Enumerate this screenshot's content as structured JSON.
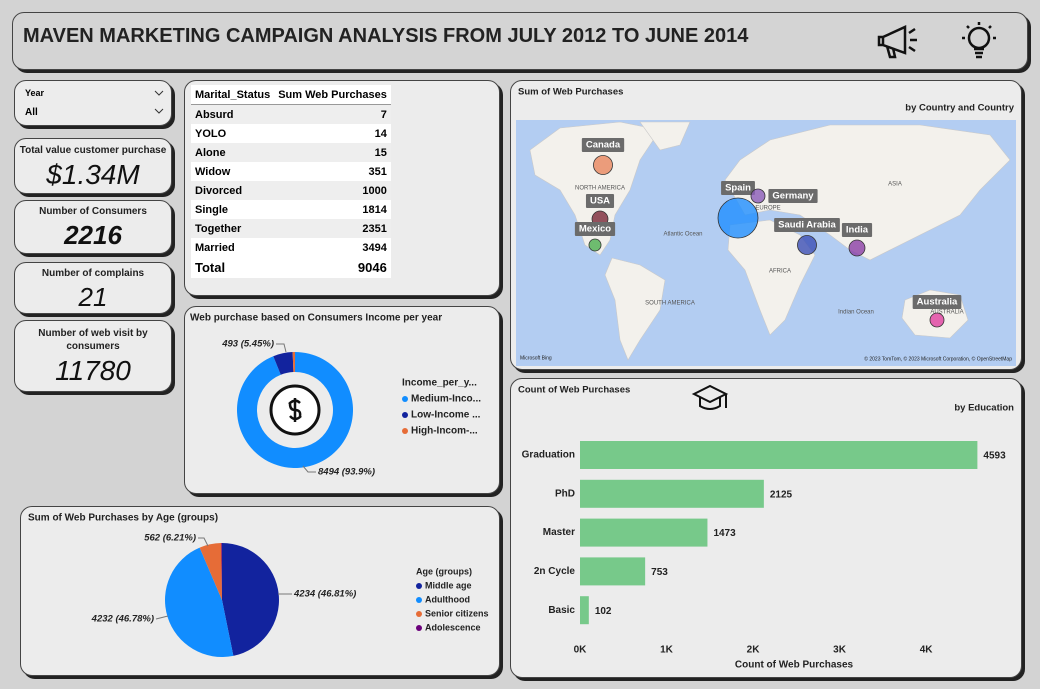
{
  "header": {
    "title": "MAVEN MARKETING CAMPAIGN ANALYSIS FROM JULY 2012 TO JUNE 2014"
  },
  "slicer": {
    "label": "Year",
    "value": "All"
  },
  "cards": [
    {
      "label": "Total value customer purchase",
      "value": "$1.34M"
    },
    {
      "label": "Number of Consumers",
      "value": 2216
    },
    {
      "label": "Number of complains",
      "value": 21
    },
    {
      "label": "Number of web visit by consumers",
      "value": 11780
    }
  ],
  "table": {
    "columns": [
      "Marital_Status",
      "Sum Web Purchases"
    ],
    "rows": [
      [
        "Absurd",
        7
      ],
      [
        "YOLO",
        14
      ],
      [
        "Alone",
        15
      ],
      [
        "Widow",
        351
      ],
      [
        "Divorced",
        1000
      ],
      [
        "Single",
        1814
      ],
      [
        "Together",
        2351
      ],
      [
        "Married",
        3494
      ]
    ],
    "total": {
      "label": "Total",
      "value": 9046
    }
  },
  "chart_data": [
    {
      "type": "map",
      "title": "Sum of Web Purchases",
      "subtitle": "by Country and Country",
      "categories": [
        "Canada",
        "Spain",
        "Germany",
        "USA",
        "Mexico",
        "Saudi Arabia",
        "India",
        "Australia"
      ],
      "values": [
        1000,
        4400,
        540,
        700,
        400,
        1000,
        700,
        540
      ],
      "colors": [
        "#e8875f",
        "#1f8fff",
        "#8a5bb8",
        "#7b2838",
        "#4caf50",
        "#3b4fb5",
        "#8b3fa6",
        "#e040a0"
      ],
      "region_labels": [
        "NORTH AMERICA",
        "SOUTH AMERICA",
        "AFRICA",
        "ASIA",
        "EUROPE",
        "AUSTRALIA",
        "Atlantic Ocean",
        "Indian Ocean"
      ],
      "attribution": "© 2023 TomTom, © 2023 Microsoft Corporation, © OpenStreetMap",
      "logo": "Microsoft Bing"
    },
    {
      "type": "donut",
      "title": "Web purchase based on Consumers Income per year",
      "legend_title": "Income_per_y...",
      "categories": [
        "Medium-Inco...",
        "Low-Income ...",
        "High-Incom-..."
      ],
      "values": [
        8494,
        493,
        59
      ],
      "value_labels": [
        "8494 (93.9%)",
        "493 (5.45%)",
        null
      ],
      "colors": [
        "#118dff",
        "#12239e",
        "#e66c37"
      ]
    },
    {
      "type": "pie",
      "title": "Sum of Web Purchases by Age (groups)",
      "legend_title": "Age (groups)",
      "categories": [
        "Middle age",
        "Adulthood",
        "Senior citizens",
        "Adolescence"
      ],
      "values": [
        4234,
        4232,
        562,
        18
      ],
      "value_labels": [
        "4234 (46.81%)",
        "4232 (46.78%)",
        "562 (6.21%)",
        null
      ],
      "colors": [
        "#12239e",
        "#118dff",
        "#e66c37",
        "#6b007b"
      ]
    },
    {
      "type": "bar",
      "title": "Count of Web Purchases",
      "subtitle": "by Education",
      "x_label": "Count of Web Purchases",
      "categories": [
        "Graduation",
        "PhD",
        "Master",
        "2n Cycle",
        "Basic"
      ],
      "values": [
        4593,
        2125,
        1473,
        753,
        102
      ],
      "color": "#77c98a",
      "xlim": [
        0,
        4600
      ],
      "xticks": [
        {
          "value": 0,
          "label": "0K"
        },
        {
          "value": 1000,
          "label": "1K"
        },
        {
          "value": 2000,
          "label": "2K"
        },
        {
          "value": 3000,
          "label": "3K"
        },
        {
          "value": 4000,
          "label": "4K"
        }
      ]
    }
  ]
}
